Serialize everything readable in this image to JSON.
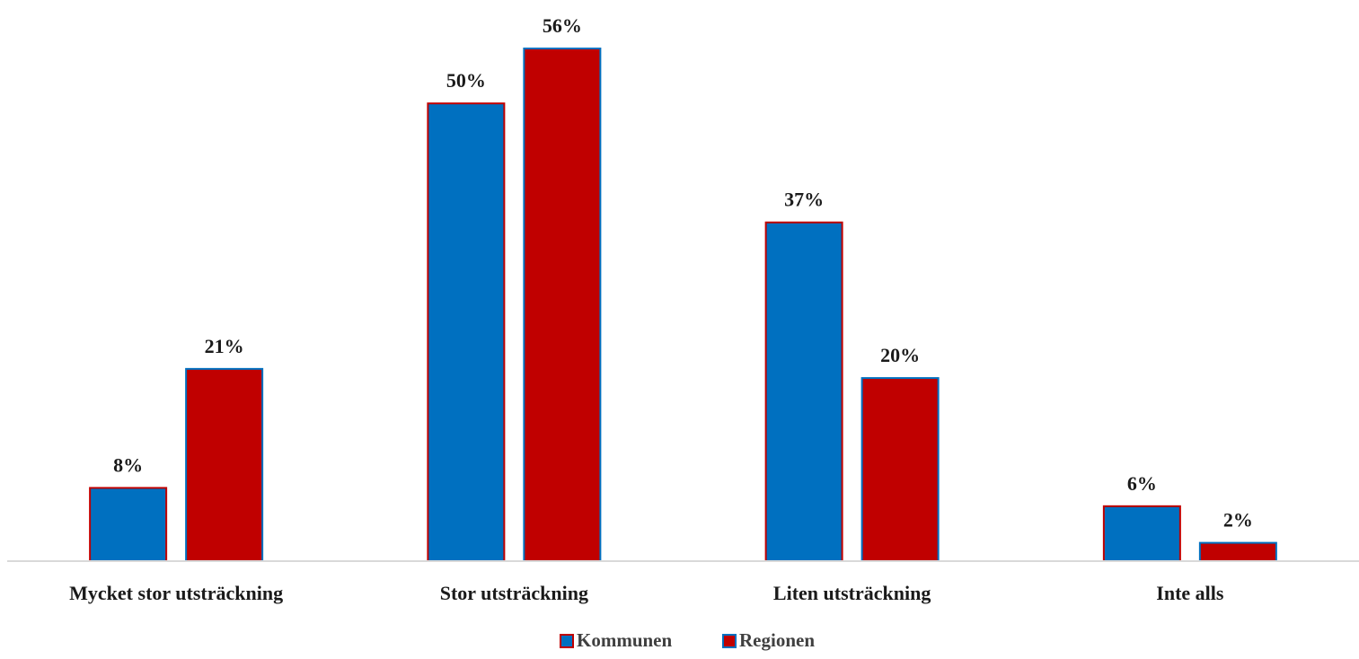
{
  "chart_data": {
    "type": "bar",
    "categories": [
      "Mycket stor utsträckning",
      "Stor utsträckning",
      "Liten utsträckning",
      "Inte alls"
    ],
    "series": [
      {
        "name": "Kommunen",
        "values": [
          8,
          50,
          37,
          6
        ],
        "labels": [
          "8%",
          "50%",
          "37%",
          "6%"
        ],
        "color": "#0070C0",
        "border": "#C00000"
      },
      {
        "name": "Regionen",
        "values": [
          21,
          56,
          20,
          2
        ],
        "labels": [
          "21%",
          "56%",
          "20%",
          "2%"
        ],
        "color": "#C00000",
        "border": "#0070C0"
      }
    ],
    "ylim": [
      0,
      56
    ],
    "unit": "%",
    "grid": false,
    "legend": "bottom-center",
    "axis_color": "#D9D9D9"
  }
}
